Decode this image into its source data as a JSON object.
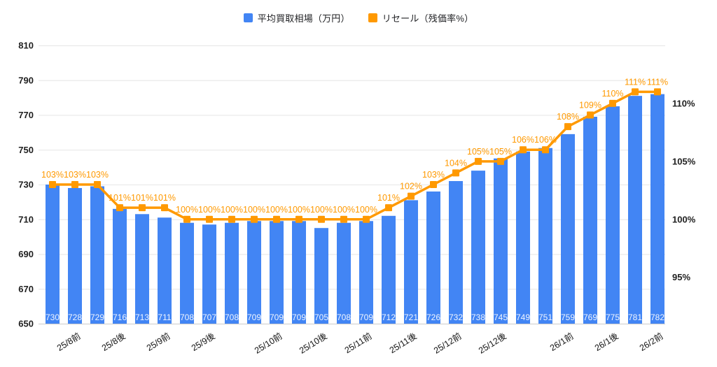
{
  "legend": {
    "items": [
      {
        "label": "平均買取相場（万円）",
        "color": "#4285f4"
      },
      {
        "label": "リセール（残価率%）",
        "color": "#ff9900"
      }
    ]
  },
  "chart_data": {
    "type": "bar",
    "subtype": "combo-bar-line-dual-axis",
    "title": "",
    "legend_position": "top",
    "grid": "horizontal",
    "categories": [
      "25/8前",
      "25/8後",
      "25/9前",
      "25/9後",
      "25/10前",
      "25/10後",
      "25/11前",
      "25/11後",
      "25/12前",
      "25/12後",
      "26/1前",
      "26/1後",
      "26/2前"
    ],
    "category_bar_index": [
      1,
      3,
      5,
      7,
      10,
      12,
      14,
      16,
      18,
      20,
      23,
      25,
      27
    ],
    "series": [
      {
        "name": "平均買取相場（万円）",
        "type": "bar",
        "yaxis": "left",
        "color": "#4285f4",
        "values": [
          730,
          728,
          729,
          716,
          713,
          711,
          708,
          707,
          708,
          709,
          709,
          709,
          705,
          708,
          709,
          712,
          721,
          726,
          732,
          738,
          745,
          749,
          751,
          759,
          769,
          775,
          781,
          782
        ]
      },
      {
        "name": "リセール（残価率%）",
        "type": "line",
        "yaxis": "right",
        "color": "#ff9900",
        "marker": "square",
        "label_suffix": "%",
        "values": [
          103,
          103,
          103,
          101,
          101,
          101,
          100,
          100,
          100,
          100,
          100,
          100,
          100,
          100,
          100,
          101,
          102,
          103,
          104,
          105,
          105,
          106,
          106,
          108,
          109,
          110,
          111,
          111
        ]
      }
    ],
    "left_axis": {
      "min": 650,
      "max": 810,
      "ticks": [
        650,
        670,
        690,
        710,
        730,
        750,
        770,
        790,
        810
      ]
    },
    "right_axis": {
      "ticks": [
        95,
        100,
        105,
        110
      ],
      "suffix": "%",
      "aligned_left_value_at_100": 710,
      "left_units_per_percent": 6.6667
    }
  }
}
